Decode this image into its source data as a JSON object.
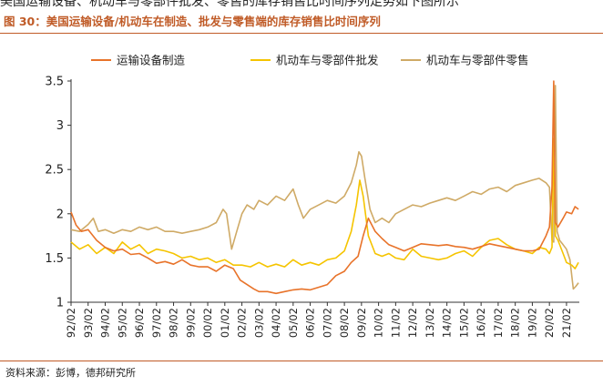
{
  "header_fragment": "美国运输设备、机动车与零部件批发、零售的库存销售比时间序列走势如下图所示",
  "figure_title": "图 30：美国运输设备/机动车在制造、批发与零售端的库存销售比时间序列",
  "source_note": "资料来源：彭博，德邦研究所",
  "colors": {
    "accent": "#c05b27",
    "series1": "#e8732a",
    "series2": "#f5c400",
    "series3": "#cfaa66"
  },
  "chart_data": {
    "type": "line",
    "title": "图 30：美国运输设备/机动车在制造、批发与零售端的库存销售比时间序列",
    "xlabel": "",
    "ylabel": "",
    "ylim": [
      1,
      3.5
    ],
    "yticks": [
      "1",
      "1.5",
      "2",
      "2.5",
      "3",
      "3.5"
    ],
    "xlim": [
      1992.0,
      2021.75
    ],
    "x_tick_labels": [
      "92/02",
      "93/02",
      "94/02",
      "95/02",
      "96/02",
      "97/02",
      "98/02",
      "99/02",
      "00/02",
      "01/02",
      "02/02",
      "03/02",
      "04/02",
      "05/02",
      "06/02",
      "07/02",
      "08/02",
      "09/02",
      "10/02",
      "11/02",
      "12/02",
      "13/02",
      "14/02",
      "15/02",
      "16/02",
      "17/02",
      "18/02",
      "19/02",
      "20/02",
      "21/02"
    ],
    "grid": false,
    "legend_position": "top",
    "series": [
      {
        "name": "运输设备制造",
        "x": [
          1992.0,
          1992.3,
          1992.6,
          1993.0,
          1993.5,
          1994.0,
          1994.5,
          1995.0,
          1995.5,
          1996.0,
          1996.5,
          1997.0,
          1997.5,
          1998.0,
          1998.5,
          1999.0,
          1999.5,
          2000.0,
          2000.5,
          2001.0,
          2001.5,
          2001.9,
          2002.3,
          2002.7,
          2003.0,
          2003.5,
          2004.0,
          2004.5,
          2005.0,
          2005.5,
          2006.0,
          2006.5,
          2007.0,
          2007.5,
          2008.0,
          2008.4,
          2008.8,
          2009.1,
          2009.4,
          2009.8,
          2010.2,
          2010.6,
          2011.0,
          2011.5,
          2012.0,
          2012.5,
          2013.0,
          2013.5,
          2014.0,
          2014.5,
          2015.0,
          2015.5,
          2016.0,
          2016.5,
          2017.0,
          2017.5,
          2018.0,
          2018.5,
          2019.0,
          2019.4,
          2019.8,
          2020.0,
          2020.15,
          2020.25,
          2020.35,
          2020.5,
          2020.8,
          2021.0,
          2021.3,
          2021.5,
          2021.7
        ],
        "values": [
          2.02,
          1.87,
          1.8,
          1.82,
          1.7,
          1.62,
          1.58,
          1.6,
          1.54,
          1.55,
          1.5,
          1.44,
          1.46,
          1.43,
          1.48,
          1.42,
          1.4,
          1.4,
          1.35,
          1.42,
          1.38,
          1.25,
          1.2,
          1.15,
          1.12,
          1.12,
          1.1,
          1.12,
          1.14,
          1.15,
          1.14,
          1.17,
          1.2,
          1.3,
          1.35,
          1.45,
          1.52,
          1.75,
          1.95,
          1.8,
          1.72,
          1.65,
          1.62,
          1.58,
          1.62,
          1.66,
          1.65,
          1.64,
          1.65,
          1.63,
          1.62,
          1.6,
          1.63,
          1.66,
          1.64,
          1.62,
          1.6,
          1.58,
          1.58,
          1.6,
          1.75,
          1.85,
          2.3,
          3.5,
          1.9,
          1.85,
          1.95,
          2.02,
          2.0,
          2.08,
          2.05
        ]
      },
      {
        "name": "机动车与零部件批发",
        "x": [
          1992.0,
          1992.5,
          1993.0,
          1993.5,
          1994.0,
          1994.5,
          1995.0,
          1995.5,
          1996.0,
          1996.5,
          1997.0,
          1997.5,
          1998.0,
          1998.5,
          1999.0,
          1999.5,
          2000.0,
          2000.5,
          2001.0,
          2001.5,
          2002.0,
          2002.5,
          2003.0,
          2003.5,
          2004.0,
          2004.5,
          2005.0,
          2005.5,
          2006.0,
          2006.5,
          2007.0,
          2007.5,
          2008.0,
          2008.4,
          2008.7,
          2008.9,
          2009.1,
          2009.4,
          2009.8,
          2010.2,
          2010.6,
          2011.0,
          2011.5,
          2012.0,
          2012.5,
          2013.0,
          2013.5,
          2014.0,
          2014.5,
          2015.0,
          2015.5,
          2016.0,
          2016.5,
          2017.0,
          2017.5,
          2018.0,
          2018.5,
          2019.0,
          2019.4,
          2019.8,
          2020.0,
          2020.15,
          2020.25,
          2020.35,
          2020.5,
          2020.8,
          2021.0,
          2021.3,
          2021.5,
          2021.7
        ],
        "values": [
          1.68,
          1.6,
          1.65,
          1.55,
          1.62,
          1.55,
          1.68,
          1.6,
          1.65,
          1.55,
          1.6,
          1.58,
          1.55,
          1.5,
          1.52,
          1.48,
          1.5,
          1.45,
          1.48,
          1.42,
          1.42,
          1.4,
          1.45,
          1.4,
          1.43,
          1.4,
          1.48,
          1.42,
          1.45,
          1.42,
          1.48,
          1.5,
          1.58,
          1.8,
          2.1,
          2.38,
          2.2,
          1.75,
          1.55,
          1.52,
          1.55,
          1.5,
          1.48,
          1.6,
          1.52,
          1.5,
          1.48,
          1.5,
          1.55,
          1.58,
          1.52,
          1.62,
          1.7,
          1.72,
          1.65,
          1.6,
          1.58,
          1.55,
          1.62,
          1.6,
          1.55,
          1.62,
          2.85,
          1.75,
          1.7,
          1.55,
          1.45,
          1.42,
          1.38,
          1.45
        ]
      },
      {
        "name": "机动车与零部件零售",
        "x": [
          1992.0,
          1992.5,
          1993.0,
          1993.3,
          1993.6,
          1994.0,
          1994.5,
          1995.0,
          1995.5,
          1996.0,
          1996.5,
          1997.0,
          1997.5,
          1998.0,
          1998.5,
          1999.0,
          1999.5,
          2000.0,
          2000.5,
          2000.9,
          2001.1,
          2001.4,
          2001.7,
          2002.0,
          2002.3,
          2002.7,
          2003.0,
          2003.5,
          2004.0,
          2004.5,
          2005.0,
          2005.3,
          2005.6,
          2006.0,
          2006.5,
          2007.0,
          2007.5,
          2008.0,
          2008.4,
          2008.7,
          2008.85,
          2009.0,
          2009.2,
          2009.5,
          2009.8,
          2010.2,
          2010.6,
          2011.0,
          2011.5,
          2012.0,
          2012.5,
          2013.0,
          2013.5,
          2014.0,
          2014.5,
          2015.0,
          2015.5,
          2016.0,
          2016.5,
          2017.0,
          2017.5,
          2018.0,
          2018.5,
          2019.0,
          2019.4,
          2019.8,
          2020.0,
          2020.15,
          2020.25,
          2020.35,
          2020.45,
          2020.6,
          2020.8,
          2021.0,
          2021.2,
          2021.4,
          2021.55,
          2021.7
        ],
        "values": [
          1.82,
          1.8,
          1.88,
          1.95,
          1.8,
          1.82,
          1.78,
          1.82,
          1.8,
          1.85,
          1.82,
          1.85,
          1.8,
          1.8,
          1.78,
          1.8,
          1.82,
          1.85,
          1.9,
          2.05,
          2.0,
          1.6,
          1.8,
          2.0,
          2.1,
          2.05,
          2.15,
          2.1,
          2.2,
          2.15,
          2.28,
          2.1,
          1.95,
          2.05,
          2.1,
          2.15,
          2.12,
          2.2,
          2.35,
          2.55,
          2.7,
          2.65,
          2.4,
          2.05,
          1.9,
          1.95,
          1.9,
          2.0,
          2.05,
          2.1,
          2.08,
          2.12,
          2.15,
          2.18,
          2.15,
          2.2,
          2.25,
          2.22,
          2.28,
          2.3,
          2.25,
          2.32,
          2.35,
          2.38,
          2.4,
          2.35,
          2.3,
          1.7,
          1.68,
          3.45,
          1.8,
          1.7,
          1.65,
          1.6,
          1.48,
          1.15,
          1.18,
          1.22
        ]
      }
    ]
  }
}
